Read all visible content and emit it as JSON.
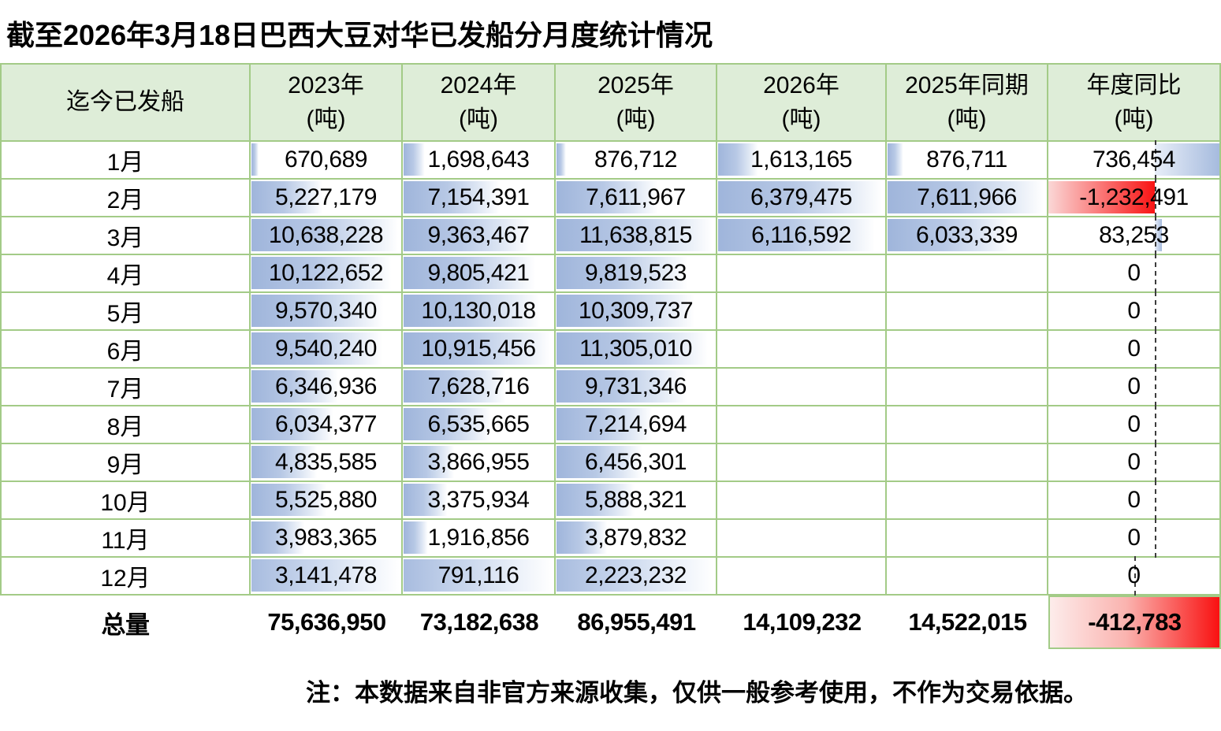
{
  "title": "截至2026年3月18日巴西大豆对华已发船分月度统计情况",
  "note": "注：本数据来自非官方来源收集，仅供一般参考使用，不作为交易依据。",
  "colors": {
    "header_fill": "#deedd8",
    "grid_border": "#a3cb87",
    "databar_blue": "#9fb5db",
    "databar_negative_red": "#f91414",
    "total_negative_fill_red": "#f91111"
  },
  "table": {
    "label_header": "迄今已发船",
    "columns": [
      {
        "line1": "2023年",
        "line2": "(吨)"
      },
      {
        "line1": "2024年",
        "line2": "(吨)"
      },
      {
        "line1": "2025年",
        "line2": "(吨)"
      },
      {
        "line1": "2026年",
        "line2": "(吨)"
      },
      {
        "line1": "2025年同期",
        "line2": "(吨)"
      },
      {
        "line1": "年度同比",
        "line2": "(吨)"
      }
    ],
    "rows": [
      {
        "month": "1月",
        "values": [
          "670,689",
          "1,698,643",
          "876,712",
          "1,613,165",
          "876,711",
          "736,454"
        ]
      },
      {
        "month": "2月",
        "values": [
          "5,227,179",
          "7,154,391",
          "7,611,967",
          "6,379,475",
          "7,611,966",
          "-1,232,491"
        ]
      },
      {
        "month": "3月",
        "values": [
          "10,638,228",
          "9,363,467",
          "11,638,815",
          "6,116,592",
          "6,033,339",
          "83,253"
        ]
      },
      {
        "month": "4月",
        "values": [
          "10,122,652",
          "9,805,421",
          "9,819,523",
          "",
          "",
          "0"
        ]
      },
      {
        "month": "5月",
        "values": [
          "9,570,340",
          "10,130,018",
          "10,309,737",
          "",
          "",
          "0"
        ]
      },
      {
        "month": "6月",
        "values": [
          "9,540,240",
          "10,915,456",
          "11,305,010",
          "",
          "",
          "0"
        ]
      },
      {
        "month": "7月",
        "values": [
          "6,346,936",
          "7,628,716",
          "9,731,346",
          "",
          "",
          "0"
        ]
      },
      {
        "month": "8月",
        "values": [
          "6,034,377",
          "6,535,665",
          "7,214,694",
          "",
          "",
          "0"
        ]
      },
      {
        "month": "9月",
        "values": [
          "4,835,585",
          "3,866,955",
          "6,456,301",
          "",
          "",
          "0"
        ]
      },
      {
        "month": "10月",
        "values": [
          "5,525,880",
          "3,375,934",
          "5,888,321",
          "",
          "",
          "0"
        ]
      },
      {
        "month": "11月",
        "values": [
          "3,983,365",
          "1,916,856",
          "3,879,832",
          "",
          "",
          "0"
        ]
      },
      {
        "month": "12月",
        "values": [
          "3,141,478",
          "791,116",
          "2,223,232",
          "",
          "",
          "0"
        ]
      }
    ],
    "totals": {
      "label": "总量",
      "values": [
        "75,636,950",
        "73,182,638",
        "86,955,491",
        "14,109,232",
        "14,522,015",
        "-412,783"
      ]
    },
    "yoy_axis_percent": 62
  }
}
